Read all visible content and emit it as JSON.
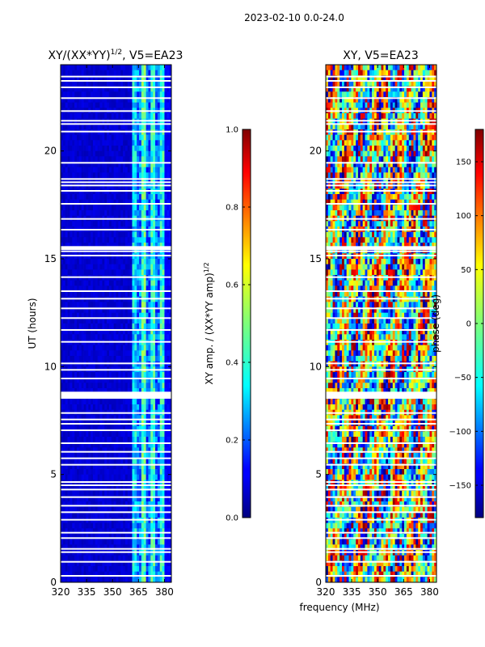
{
  "figure": {
    "suptitle": "2023-02-10 0.0-24.0",
    "xlabel_shared": "frequency (MHz)"
  },
  "chart_data": [
    {
      "type": "heatmap",
      "title": "XY/(XX*YY)^1/2, V5=EA23",
      "title_main": "XY/(XX*YY)",
      "title_exp": "1/2",
      "title_suffix": ", V5=EA23",
      "ylabel": "UT (hours)",
      "x_ticks": [
        320,
        335,
        350,
        365,
        380
      ],
      "x_tick_labels": [
        "320",
        "335",
        "350",
        "365",
        "380"
      ],
      "xlim": [
        320,
        384
      ],
      "y_ticks": [
        0,
        5,
        10,
        15,
        20
      ],
      "y_tick_labels": [
        "0",
        "5",
        "10",
        "15",
        "20"
      ],
      "ylim": [
        0,
        24
      ],
      "colormap": "jet",
      "value_range": [
        0.0,
        1.0
      ],
      "data_description": "Low amplitude (~0.1) below 361 MHz; higher (~0.3-0.5) in vertical bands between 361 and 380 MHz",
      "bands": [
        {
          "x0": 320,
          "x1": 361,
          "level": 0.08
        },
        {
          "x0": 361,
          "x1": 364,
          "level": 0.35
        },
        {
          "x0": 364,
          "x1": 367,
          "level": 0.25
        },
        {
          "x0": 367,
          "x1": 370,
          "level": 0.45
        },
        {
          "x0": 370,
          "x1": 372,
          "level": 0.22
        },
        {
          "x0": 372,
          "x1": 375,
          "level": 0.42
        },
        {
          "x0": 375,
          "x1": 377,
          "level": 0.22
        },
        {
          "x0": 377,
          "x1": 380,
          "level": 0.4
        },
        {
          "x0": 380,
          "x1": 384,
          "level": 0.12
        }
      ],
      "colorbar": {
        "label_main": "XY amp. / (XX*YY amp)",
        "label_exp": "1/2",
        "ticks": [
          0.0,
          0.2,
          0.4,
          0.6,
          0.8,
          1.0
        ],
        "tick_labels": [
          "0.0",
          "0.2",
          "0.4",
          "0.6",
          "0.8",
          "1.0"
        ],
        "range": [
          0.0,
          1.0
        ]
      }
    },
    {
      "type": "heatmap",
      "title": "XY, V5=EA23",
      "x_ticks": [
        320,
        335,
        350,
        365,
        380
      ],
      "x_tick_labels": [
        "320",
        "335",
        "350",
        "365",
        "380"
      ],
      "xlim": [
        320,
        384
      ],
      "y_ticks": [
        0,
        5,
        10,
        15,
        20
      ],
      "y_tick_labels": [
        "0",
        "5",
        "10",
        "15",
        "20"
      ],
      "ylim": [
        0,
        24
      ],
      "colormap": "jet",
      "value_range": [
        -180,
        180
      ],
      "data_description": "XY phase in degrees, noisy across the full band with patches wrapping between -180 and 180",
      "colorbar": {
        "label": "phase (deg)",
        "ticks": [
          -150,
          -100,
          -50,
          0,
          50,
          100,
          150
        ],
        "tick_labels": [
          "−150",
          "−100",
          "−50",
          "0",
          "50",
          "100",
          "150"
        ],
        "range": [
          -180,
          180
        ]
      }
    }
  ],
  "flagged_rows_hours": [
    0.3,
    0.95,
    1.4,
    1.55,
    2.05,
    2.3,
    2.9,
    3.25,
    3.55,
    3.95,
    4.3,
    4.5,
    4.65,
    5.45,
    5.75,
    6.05,
    6.45,
    7.05,
    7.35,
    7.55,
    7.85,
    8.55,
    8.6,
    8.65,
    8.7,
    8.75,
    8.8,
    9.45,
    9.85,
    10.15,
    11.15,
    11.7,
    12.25,
    12.7,
    13.15,
    13.5,
    14.15,
    15.15,
    15.35,
    15.45,
    15.5,
    15.55,
    16.35,
    16.85,
    17.55,
    18.15,
    18.4,
    18.55,
    18.7,
    19.45,
    20.9,
    21.25,
    21.4,
    21.85,
    22.45,
    22.95,
    23.25,
    23.45
  ]
}
